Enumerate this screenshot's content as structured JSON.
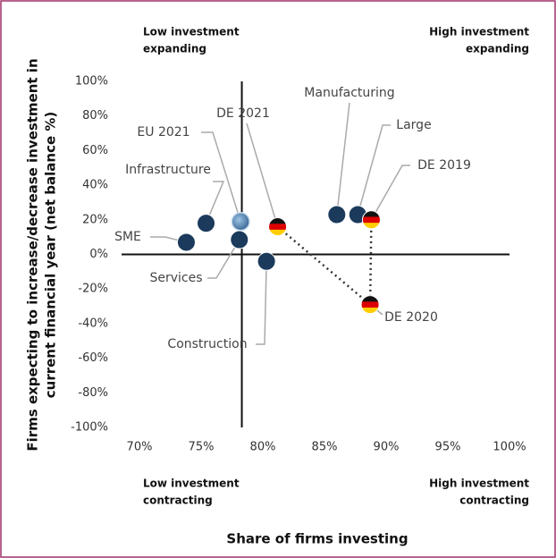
{
  "chart_data": {
    "type": "scatter",
    "quadrant_labels": {
      "top_left": [
        "Low investment",
        "expanding"
      ],
      "top_right": [
        "High investment",
        "expanding"
      ],
      "bottom_left": [
        "Low investment",
        "contracting"
      ],
      "bottom_right": [
        "High investment",
        "contracting"
      ]
    },
    "xlabel": "Share of firms investing",
    "ylabel": [
      "Firms expecting to increase/decrease investment in",
      "current financial year  (net balance %)"
    ],
    "point_labels": [
      "SME",
      "Infrastructure",
      "EU 2021",
      "Services",
      "Construction",
      "DE 2021",
      "Manufacturing",
      "Large",
      "DE 2019",
      "DE 2020"
    ],
    "x": [
      73.8,
      75.4,
      78.2,
      78.1,
      80.3,
      81.2,
      86.0,
      87.7,
      88.8,
      88.7
    ],
    "values": [
      7,
      18,
      19,
      8.5,
      -4,
      16,
      23,
      23,
      20,
      -29
    ],
    "markers": [
      "circle",
      "circle",
      "eu",
      "circle",
      "circle",
      "flag",
      "circle",
      "circle",
      "flag",
      "flag"
    ],
    "color": "#1b3a5c",
    "x_reference": 78.3,
    "y_reference": 0,
    "xlim": [
      70,
      100
    ],
    "xticks": [
      {
        "value": 70,
        "label": "70%"
      },
      {
        "value": 75,
        "label": "75%"
      },
      {
        "value": 80,
        "label": "80%"
      },
      {
        "value": 85,
        "label": "85%"
      },
      {
        "value": 90,
        "label": "90%"
      },
      {
        "value": 95,
        "label": "95%"
      },
      {
        "value": 100,
        "label": "100%"
      }
    ],
    "ylim": [
      -100,
      100
    ],
    "yticks": [
      {
        "value": 100,
        "label": "100%"
      },
      {
        "value": 80,
        "label": "80%"
      },
      {
        "value": 60,
        "label": "60%"
      },
      {
        "value": 40,
        "label": "40%"
      },
      {
        "value": 20,
        "label": "20%"
      },
      {
        "value": 0,
        "label": "0%"
      },
      {
        "value": -20,
        "label": "-20%"
      },
      {
        "value": -40,
        "label": "-40%"
      },
      {
        "value": -60,
        "label": "-60%"
      },
      {
        "value": -80,
        "label": "-80%"
      },
      {
        "value": -100,
        "label": "-100%"
      }
    ]
  }
}
